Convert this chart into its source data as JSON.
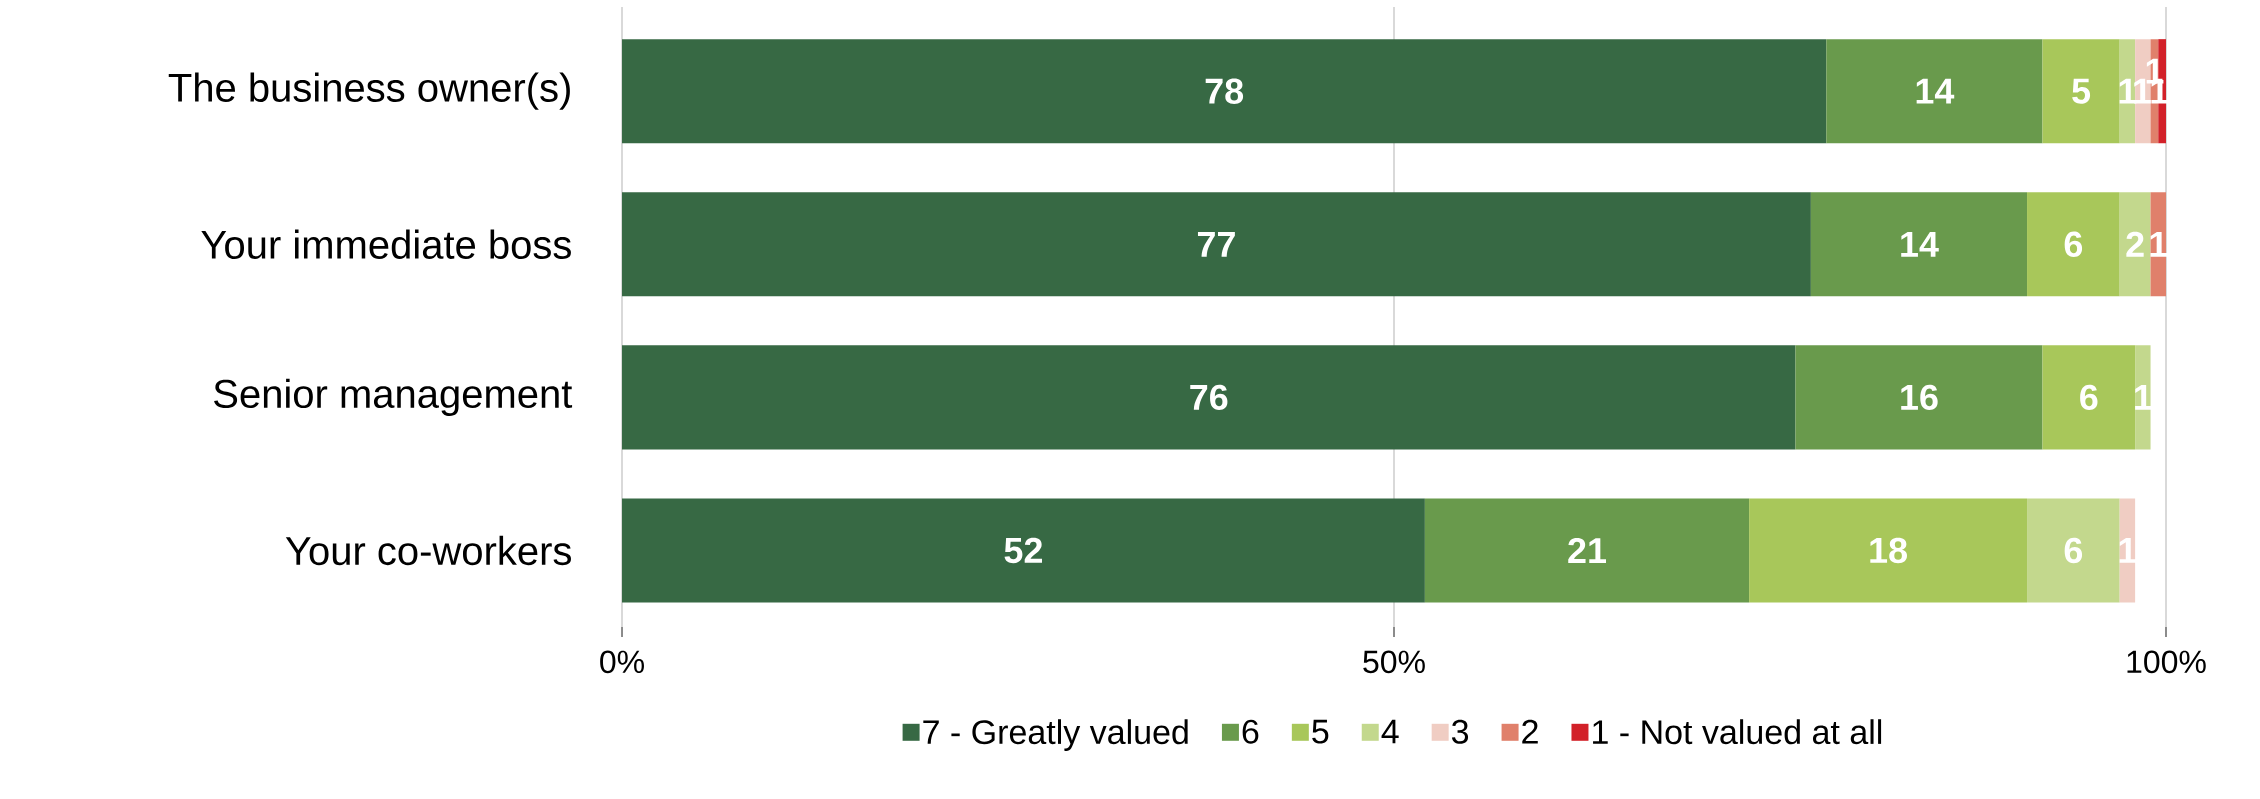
{
  "chart_data": {
    "type": "bar",
    "orientation": "horizontal",
    "stacked": true,
    "categories": [
      "The business owner(s)",
      "Your immediate boss",
      "Senior management",
      "Your co-workers"
    ],
    "series": [
      {
        "name": "7 - Greatly valued",
        "color": "#376944",
        "values": [
          78,
          77,
          76,
          52
        ],
        "value_labels": [
          "78",
          "77",
          "76",
          "52"
        ]
      },
      {
        "name": "6",
        "color": "#699a4c",
        "values": [
          14,
          14,
          16,
          21
        ],
        "value_labels": [
          "14",
          "14",
          "16",
          "21"
        ]
      },
      {
        "name": "5",
        "color": "#a8c75a",
        "values": [
          5,
          6,
          6,
          18
        ],
        "value_labels": [
          "5",
          "6",
          "6",
          "18"
        ]
      },
      {
        "name": "4",
        "color": "#c3d88d",
        "values": [
          1,
          2,
          1,
          6
        ],
        "value_labels": [
          "1",
          "2",
          "1",
          "6"
        ]
      },
      {
        "name": "3",
        "color": "#f0cdc3",
        "values": [
          1,
          null,
          null,
          1
        ],
        "value_labels": [
          "1",
          null,
          null,
          "1"
        ]
      },
      {
        "name": "2",
        "color": "#e0806b",
        "values": [
          0.5,
          1,
          null,
          null
        ],
        "value_labels": [
          "1",
          "1",
          null,
          null
        ]
      },
      {
        "name": "1 - Not valued at all",
        "color": "#d22129",
        "values": [
          0.5,
          null,
          null,
          null
        ],
        "value_labels": [
          "1",
          null,
          null,
          null
        ]
      }
    ],
    "xlim": [
      0,
      100
    ],
    "xticks": [
      {
        "value": 0,
        "label": "0%"
      },
      {
        "value": 50,
        "label": "50%"
      },
      {
        "value": 100,
        "label": "100%"
      }
    ],
    "grid": "x",
    "legend": "bottom"
  }
}
